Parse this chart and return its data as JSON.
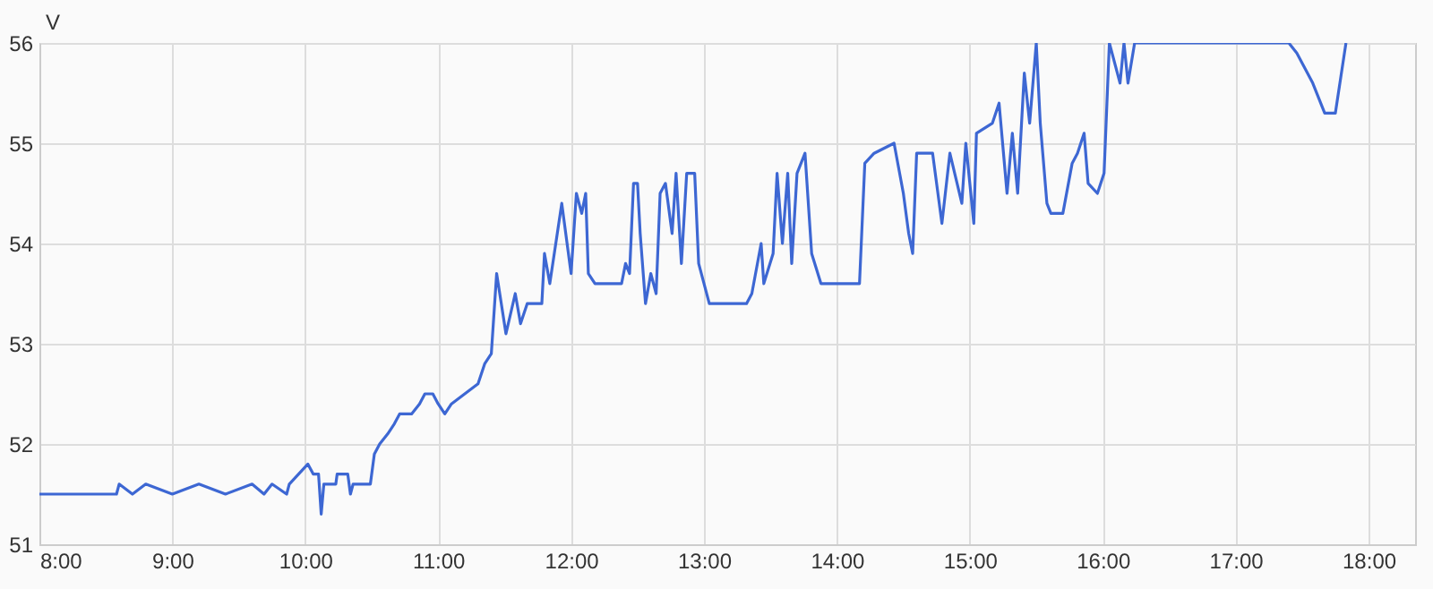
{
  "chart_data": {
    "type": "line",
    "ylabel": "V",
    "x": [
      8.0,
      8.58,
      8.6,
      8.7,
      8.8,
      9.0,
      9.2,
      9.4,
      9.6,
      9.69,
      9.75,
      9.86,
      9.88,
      10.02,
      10.06,
      10.1,
      10.12,
      10.14,
      10.23,
      10.24,
      10.32,
      10.34,
      10.36,
      10.49,
      10.52,
      10.56,
      10.62,
      10.67,
      10.71,
      10.8,
      10.86,
      10.9,
      10.96,
      11.0,
      11.05,
      11.1,
      11.2,
      11.3,
      11.35,
      11.4,
      11.44,
      11.51,
      11.58,
      11.62,
      11.67,
      11.78,
      11.8,
      11.84,
      11.93,
      12.0,
      12.04,
      12.08,
      12.11,
      12.13,
      12.18,
      12.38,
      12.41,
      12.44,
      12.47,
      12.5,
      12.52,
      12.56,
      12.6,
      12.64,
      12.67,
      12.71,
      12.76,
      12.79,
      12.83,
      12.87,
      12.93,
      12.96,
      13.04,
      13.32,
      13.36,
      13.43,
      13.45,
      13.52,
      13.55,
      13.59,
      13.63,
      13.66,
      13.7,
      13.76,
      13.81,
      13.88,
      14.12,
      14.17,
      14.21,
      14.28,
      14.43,
      14.5,
      14.54,
      14.57,
      14.6,
      14.72,
      14.79,
      14.85,
      14.94,
      14.97,
      15.03,
      15.05,
      15.17,
      15.22,
      15.28,
      15.32,
      15.36,
      15.41,
      15.45,
      15.5,
      15.53,
      15.58,
      15.61,
      15.7,
      15.77,
      15.81,
      15.86,
      15.89,
      15.96,
      16.01,
      16.05,
      16.13,
      16.16,
      16.19,
      16.24,
      17.4,
      17.46,
      17.58,
      17.67,
      17.75,
      17.83
    ],
    "series": [
      {
        "color": "#3d67d3",
        "values": [
          51.5,
          51.5,
          51.6,
          51.5,
          51.6,
          51.5,
          51.6,
          51.5,
          51.6,
          51.5,
          51.6,
          51.5,
          51.6,
          51.8,
          51.7,
          51.7,
          51.3,
          51.6,
          51.6,
          51.7,
          51.7,
          51.5,
          51.6,
          51.6,
          51.9,
          52.0,
          52.1,
          52.2,
          52.3,
          52.3,
          52.4,
          52.5,
          52.5,
          52.4,
          52.3,
          52.4,
          52.5,
          52.6,
          52.8,
          52.9,
          53.7,
          53.1,
          53.5,
          53.2,
          53.4,
          53.4,
          53.9,
          53.6,
          54.4,
          53.7,
          54.5,
          54.3,
          54.5,
          53.7,
          53.6,
          53.6,
          53.8,
          53.7,
          54.6,
          54.6,
          54.1,
          53.4,
          53.7,
          53.5,
          54.5,
          54.6,
          54.1,
          54.7,
          53.8,
          54.7,
          54.7,
          53.8,
          53.4,
          53.4,
          53.5,
          54.0,
          53.6,
          53.9,
          54.7,
          54.0,
          54.7,
          53.8,
          54.7,
          54.9,
          53.9,
          53.6,
          53.6,
          53.6,
          54.8,
          54.9,
          55.0,
          54.5,
          54.1,
          53.9,
          54.9,
          54.9,
          54.2,
          54.9,
          54.4,
          55.0,
          54.2,
          55.1,
          55.2,
          55.4,
          54.5,
          55.1,
          54.5,
          55.7,
          55.2,
          56.0,
          55.2,
          54.4,
          54.3,
          54.3,
          54.8,
          54.9,
          55.1,
          54.6,
          54.5,
          54.7,
          56.0,
          55.6,
          56.0,
          55.6,
          56.0,
          56.0,
          55.9,
          55.6,
          55.3,
          55.3,
          56.0
        ]
      }
    ],
    "xlim": [
      8,
      18.35
    ],
    "xticks": [
      {
        "value": 8,
        "label": "8:00"
      },
      {
        "value": 9,
        "label": "9:00"
      },
      {
        "value": 10,
        "label": "10:00"
      },
      {
        "value": 11,
        "label": "11:00"
      },
      {
        "value": 12,
        "label": "12:00"
      },
      {
        "value": 13,
        "label": "13:00"
      },
      {
        "value": 14,
        "label": "14:00"
      },
      {
        "value": 15,
        "label": "15:00"
      },
      {
        "value": 16,
        "label": "16:00"
      },
      {
        "value": 17,
        "label": "17:00"
      },
      {
        "value": 18,
        "label": "18:00"
      }
    ],
    "ylim": [
      51,
      56
    ],
    "yticks": [
      51,
      52,
      53,
      54,
      55,
      56
    ],
    "grid": true,
    "marker": "none",
    "line_style": "solid"
  }
}
